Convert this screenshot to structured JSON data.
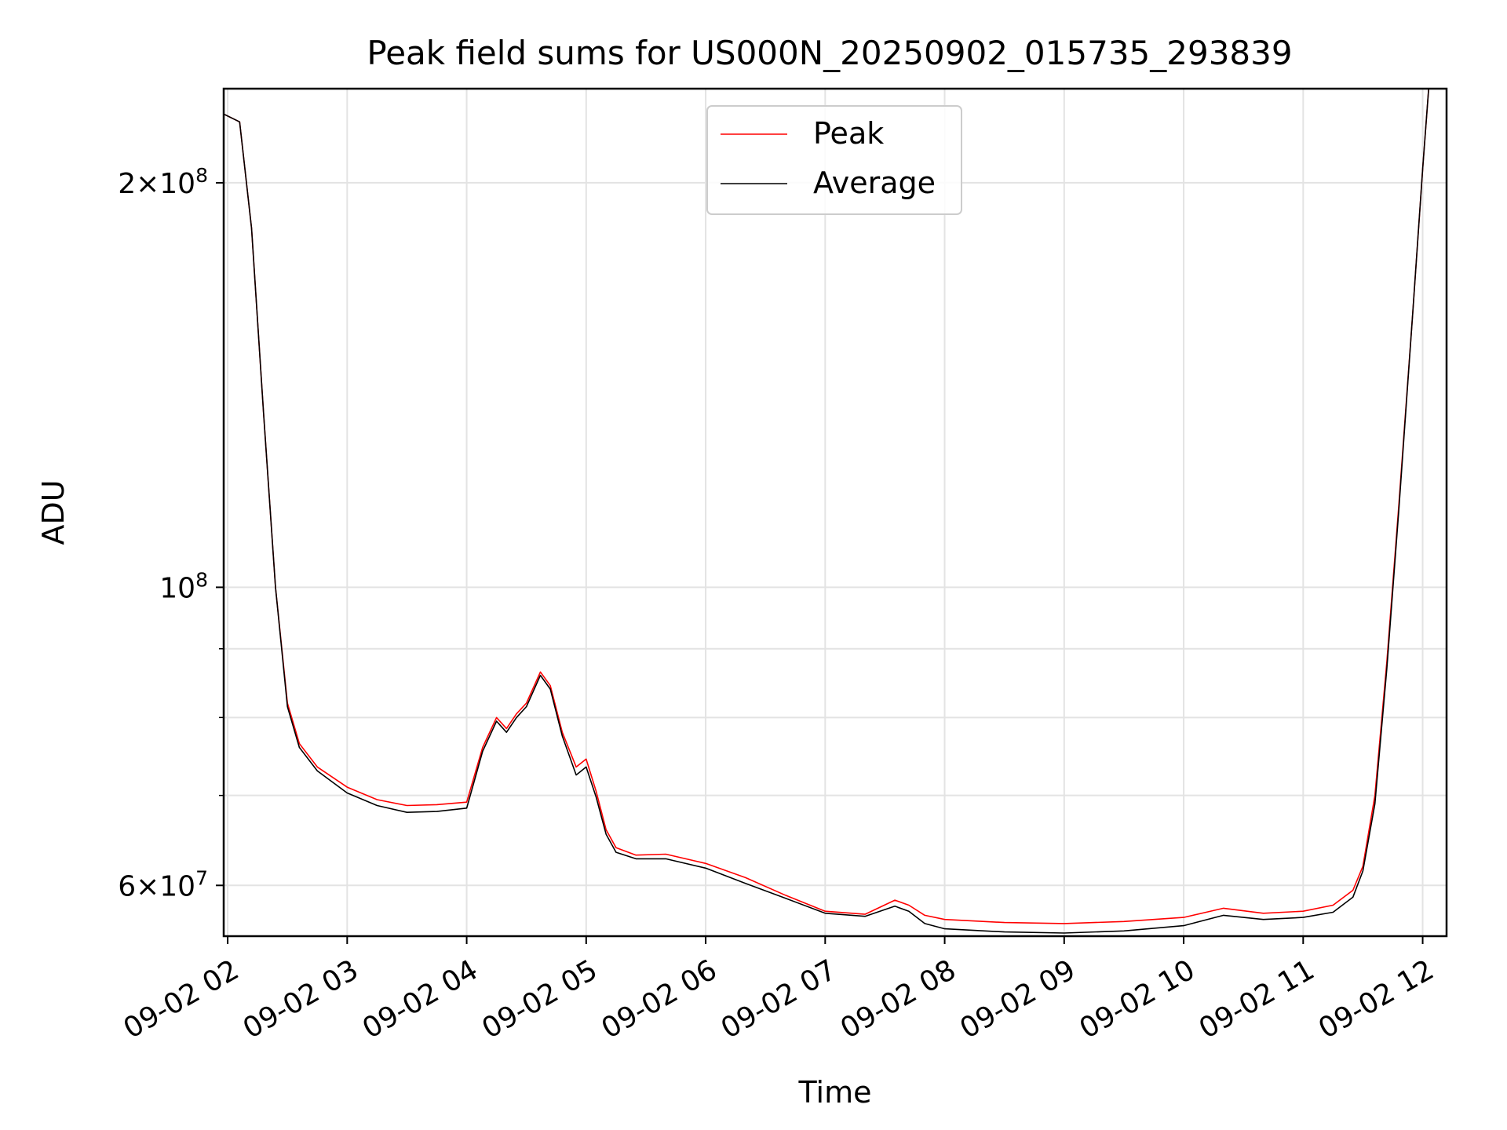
{
  "chart_data": {
    "type": "line",
    "title": "Peak field sums for US000N_20250902_015735_293839",
    "xlabel": "Time",
    "ylabel": "ADU",
    "yscale": "log",
    "ylim": [
      55000000,
      235000000
    ],
    "xlim": [
      "2025-09-02 01:58",
      "2025-09-02 12:12"
    ],
    "grid": true,
    "legend_position": "top-center",
    "x_ticks": [
      "09-02 02",
      "09-02 03",
      "09-02 04",
      "09-02 05",
      "09-02 06",
      "09-02 07",
      "09-02 08",
      "09-02 09",
      "09-02 10",
      "09-02 11",
      "09-02 12"
    ],
    "y_tick_labels": [
      {
        "value": 200000000,
        "mantissa": "2",
        "exp": "8"
      },
      {
        "value": 100000000,
        "mantissa": "",
        "exp": "8"
      },
      {
        "value": 60000000,
        "mantissa": "6",
        "exp": "7"
      }
    ],
    "y_minor_ticks": [
      70000000,
      80000000,
      90000000
    ],
    "x_times": [
      "2025-09-02 01:58",
      "2025-09-02 02:06",
      "2025-09-02 02:12",
      "2025-09-02 02:18",
      "2025-09-02 02:24",
      "2025-09-02 02:30",
      "2025-09-02 02:36",
      "2025-09-02 02:45",
      "2025-09-02 03:00",
      "2025-09-02 03:15",
      "2025-09-02 03:30",
      "2025-09-02 03:45",
      "2025-09-02 04:00",
      "2025-09-02 04:08",
      "2025-09-02 04:15",
      "2025-09-02 04:20",
      "2025-09-02 04:25",
      "2025-09-02 04:30",
      "2025-09-02 04:37",
      "2025-09-02 04:42",
      "2025-09-02 04:48",
      "2025-09-02 04:55",
      "2025-09-02 05:00",
      "2025-09-02 05:05",
      "2025-09-02 05:10",
      "2025-09-02 05:15",
      "2025-09-02 05:25",
      "2025-09-02 05:40",
      "2025-09-02 06:00",
      "2025-09-02 06:20",
      "2025-09-02 06:40",
      "2025-09-02 07:00",
      "2025-09-02 07:20",
      "2025-09-02 07:35",
      "2025-09-02 07:42",
      "2025-09-02 07:50",
      "2025-09-02 08:00",
      "2025-09-02 08:30",
      "2025-09-02 09:00",
      "2025-09-02 09:30",
      "2025-09-02 10:00",
      "2025-09-02 10:20",
      "2025-09-02 10:40",
      "2025-09-02 11:00",
      "2025-09-02 11:15",
      "2025-09-02 11:25",
      "2025-09-02 11:30",
      "2025-09-02 11:36",
      "2025-09-02 11:42",
      "2025-09-02 11:48",
      "2025-09-02 11:55",
      "2025-09-02 12:00",
      "2025-09-02 12:03"
    ],
    "series": [
      {
        "name": "Peak",
        "color": "#ff0000",
        "values": [
          225000000,
          222000000,
          185000000,
          135000000,
          100000000,
          82000000,
          76500000,
          73500000,
          71000000,
          69500000,
          68800000,
          68900000,
          69200000,
          76000000,
          80000000,
          78500000,
          80500000,
          82000000,
          86500000,
          84500000,
          78000000,
          73500000,
          74500000,
          70500000,
          66000000,
          64000000,
          63200000,
          63300000,
          62300000,
          60800000,
          59000000,
          57400000,
          57100000,
          58500000,
          58000000,
          57000000,
          56600000,
          56300000,
          56200000,
          56400000,
          56800000,
          57700000,
          57200000,
          57400000,
          58000000,
          59500000,
          62000000,
          70000000,
          88000000,
          115000000,
          160000000,
          205000000,
          235000000
        ]
      },
      {
        "name": "Average",
        "color": "#000000",
        "values": [
          225000000,
          222000000,
          185000000,
          135000000,
          100000000,
          81500000,
          76000000,
          73000000,
          70300000,
          68800000,
          68000000,
          68100000,
          68500000,
          75500000,
          79500000,
          78000000,
          80000000,
          81500000,
          86000000,
          84000000,
          77500000,
          72500000,
          73500000,
          69800000,
          65500000,
          63500000,
          62800000,
          62800000,
          61800000,
          60200000,
          58700000,
          57200000,
          56900000,
          57900000,
          57400000,
          56200000,
          55700000,
          55400000,
          55300000,
          55500000,
          56000000,
          57000000,
          56600000,
          56800000,
          57300000,
          58800000,
          61500000,
          69000000,
          87000000,
          114000000,
          160000000,
          205000000,
          235000000
        ]
      }
    ]
  }
}
